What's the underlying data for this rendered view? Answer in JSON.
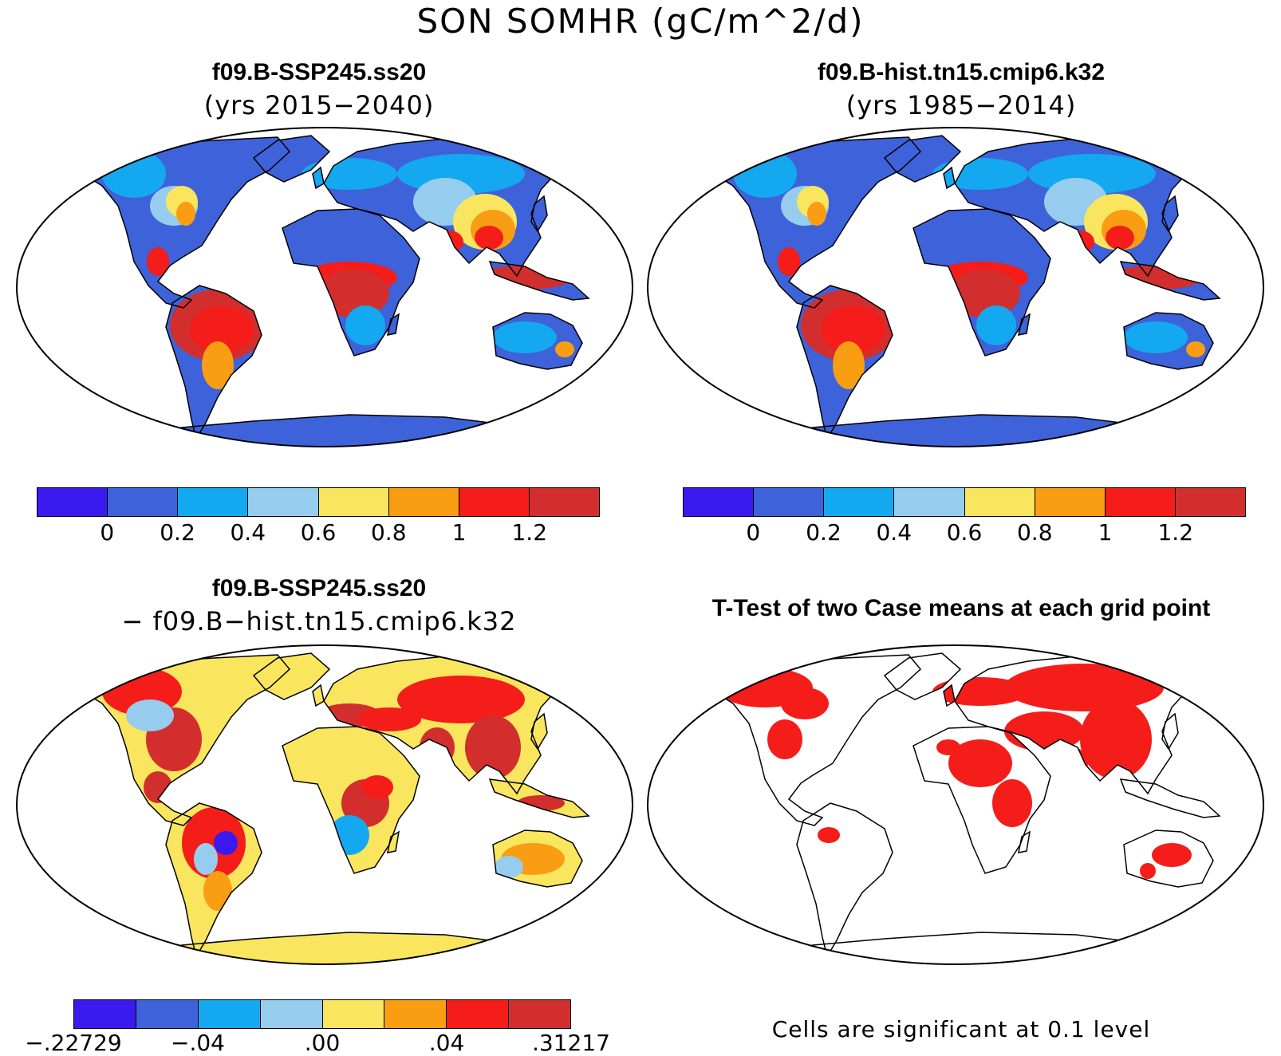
{
  "title": "SON SOMHR (gC/m^2/d)",
  "panels": {
    "p1": {
      "title": "f09.B-SSP245.ss20",
      "subtitle": "(yrs 2015−2040)"
    },
    "p2": {
      "title": "f09.B-hist.tn15.cmip6.k32",
      "subtitle": "(yrs 1985−2014)"
    },
    "p3": {
      "title": "f09.B-SSP245.ss20",
      "subtitle": "− f09.B−hist.tn15.cmip6.k32"
    },
    "p4": {
      "title": "T-Test of two Case means at each grid point",
      "note": "Cells are significant at 0.1 level"
    }
  },
  "colorbar_abs": {
    "colors": [
      "#3a1af0",
      "#3e62d9",
      "#14a8f0",
      "#96cdee",
      "#f9e65e",
      "#f99d13",
      "#f41d1a",
      "#d22e2e"
    ],
    "labels": [
      "0",
      "0.2",
      "0.4",
      "0.6",
      "0.8",
      "1",
      "1.2"
    ]
  },
  "colorbar_diff": {
    "colors": [
      "#3a1af0",
      "#3e62d9",
      "#14a8f0",
      "#96cdee",
      "#f9e65e",
      "#f99d13",
      "#f41d1a",
      "#d22e2e"
    ],
    "labels": [
      "−.22729",
      "−.04",
      ".00",
      ".04",
      ".31217"
    ]
  },
  "significance_color": "#f41d1a"
}
